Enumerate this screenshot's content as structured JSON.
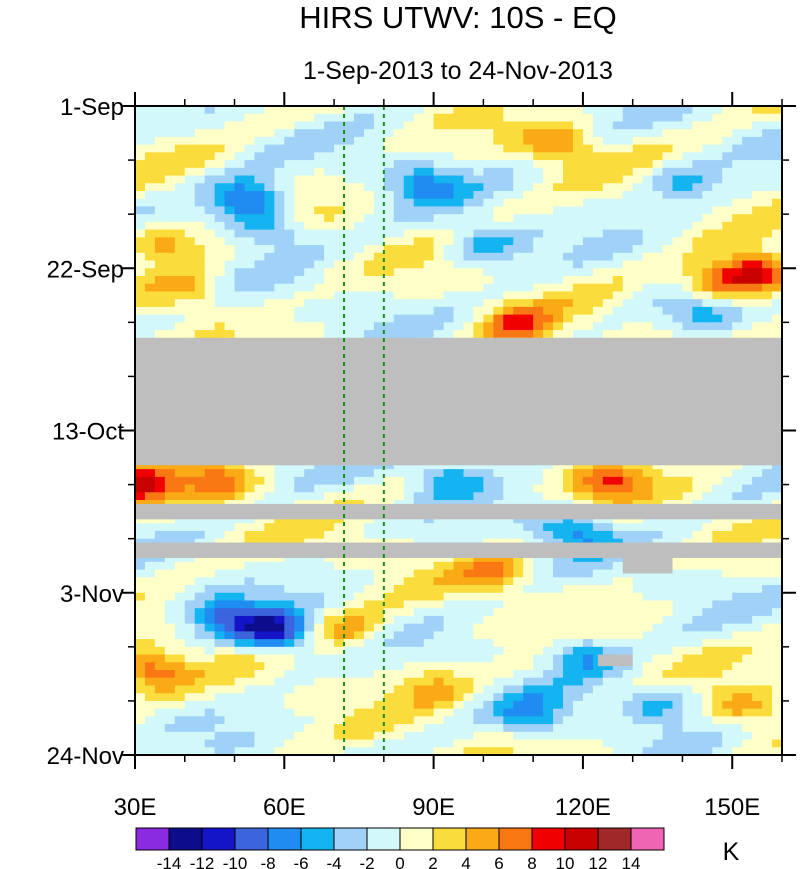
{
  "chart_data": {
    "type": "heatmap",
    "title": "HIRS UTWV: 10S - EQ",
    "subtitle": "1-Sep-2013 to 24-Nov-2013",
    "x_axis": {
      "label": "",
      "range": [
        30,
        160
      ],
      "ticks": [
        {
          "value": 30,
          "label": "30E"
        },
        {
          "value": 60,
          "label": "60E"
        },
        {
          "value": 90,
          "label": "90E"
        },
        {
          "value": 120,
          "label": "120E"
        },
        {
          "value": 150,
          "label": "150E"
        }
      ]
    },
    "y_axis": {
      "label": "",
      "range_days": [
        0,
        84
      ],
      "direction": "top-to-bottom",
      "ticks": [
        {
          "value": 0,
          "label": "1-Sep"
        },
        {
          "value": 21,
          "label": "22-Sep"
        },
        {
          "value": 42,
          "label": "13-Oct"
        },
        {
          "value": 63,
          "label": "3-Nov"
        },
        {
          "value": 84,
          "label": "24-Nov"
        }
      ]
    },
    "units": "K",
    "colorbar": {
      "levels": [
        -14,
        -12,
        -10,
        -8,
        -6,
        -4,
        -2,
        0,
        2,
        4,
        6,
        8,
        10,
        12,
        14
      ],
      "labels": [
        "-14",
        "-12",
        "-10",
        "-8",
        "-6",
        "-4",
        "-2",
        "0",
        "2",
        "4",
        "6",
        "8",
        "10",
        "12",
        "14"
      ],
      "colors": [
        "#8a2be2",
        "#0c0c8c",
        "#1414c8",
        "#3c64dc",
        "#1e8cf0",
        "#14b4f0",
        "#a0d2f8",
        "#d2f8fa",
        "#ffffc8",
        "#fadc3c",
        "#faaa14",
        "#fa7814",
        "#f00000",
        "#c80000",
        "#a02828",
        "#f064b4"
      ]
    },
    "reference_lines_lon": [
      72,
      80
    ],
    "missing_data_bands_days": [
      [
        30,
        46.5
      ],
      [
        51.5,
        53.5
      ],
      [
        56.5,
        58.5
      ]
    ],
    "missing_data_patches": [
      {
        "lon": [
          128,
          138
        ],
        "day": [
          58,
          60.5
        ]
      },
      {
        "lon": [
          123,
          130
        ],
        "day": [
          71,
          72.5
        ]
      }
    ],
    "anomaly_features": [
      {
        "lon": 115,
        "day": 5,
        "value": 6
      },
      {
        "lon": 155,
        "day": 21.5,
        "value": 11
      },
      {
        "lon": 147,
        "day": 23,
        "value": 8
      },
      {
        "lon": 107,
        "day": 28.5,
        "value": 7
      },
      {
        "lon": 36,
        "day": 18,
        "value": 6
      },
      {
        "lon": 41,
        "day": 24,
        "value": 5
      },
      {
        "lon": 52,
        "day": 12,
        "value": -9
      },
      {
        "lon": 57,
        "day": 16,
        "value": -6
      },
      {
        "lon": 88,
        "day": 10,
        "value": -6
      },
      {
        "lon": 100,
        "day": 18,
        "value": -6
      },
      {
        "lon": 140,
        "day": 10,
        "value": -5
      },
      {
        "lon": 145,
        "day": 27,
        "value": -5
      },
      {
        "lon": 31,
        "day": 49,
        "value": 9
      },
      {
        "lon": 47,
        "day": 48.5,
        "value": 6
      },
      {
        "lon": 125,
        "day": 48.5,
        "value": 7
      },
      {
        "lon": 93,
        "day": 48,
        "value": -6
      },
      {
        "lon": 118,
        "day": 55,
        "value": -7
      },
      {
        "lon": 58,
        "day": 68,
        "value": -12
      },
      {
        "lon": 48,
        "day": 66,
        "value": -7
      },
      {
        "lon": 120,
        "day": 71,
        "value": -6
      },
      {
        "lon": 33,
        "day": 73,
        "value": 8
      },
      {
        "lon": 102,
        "day": 60.5,
        "value": 5
      },
      {
        "lon": 90,
        "day": 75,
        "value": 4
      },
      {
        "lon": 152,
        "day": 78,
        "value": 5
      },
      {
        "lon": 73,
        "day": 68,
        "value": 5
      },
      {
        "lon": 135,
        "day": 77,
        "value": -5
      },
      {
        "lon": 110,
        "day": 79,
        "value": -6
      }
    ]
  }
}
